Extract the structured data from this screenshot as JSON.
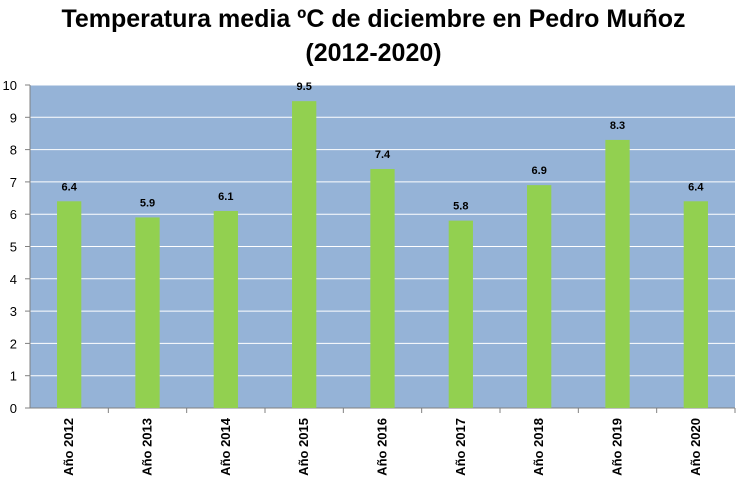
{
  "chart_data": {
    "type": "bar",
    "title_lines": [
      "Temperatura media ºC de diciembre en Pedro Muñoz",
      "(2012-2020)"
    ],
    "categories": [
      "Año 2012",
      "Año 2013",
      "Año 2014",
      "Año 2015",
      "Año 2016",
      "Año 2017",
      "Año 2018",
      "Año 2019",
      "Año 2020"
    ],
    "values": [
      6.4,
      5.9,
      6.1,
      9.5,
      7.4,
      5.8,
      6.9,
      8.3,
      6.4
    ],
    "data_labels": [
      "6.4",
      "5.9",
      "6.1",
      "9.5",
      "7.4",
      "5.8",
      "6.9",
      "8.3",
      "6.4"
    ],
    "ylim": [
      0,
      10
    ],
    "yticks": [
      0,
      1,
      2,
      3,
      4,
      5,
      6,
      7,
      8,
      9,
      10
    ],
    "xlabel": "",
    "ylabel": "",
    "grid": true,
    "legend": "none",
    "colors": {
      "plot_background": "#95B3D7",
      "bar": "#92D050",
      "gridline": "#FFFFFF",
      "axis": "#808080",
      "text": "#000000"
    }
  }
}
